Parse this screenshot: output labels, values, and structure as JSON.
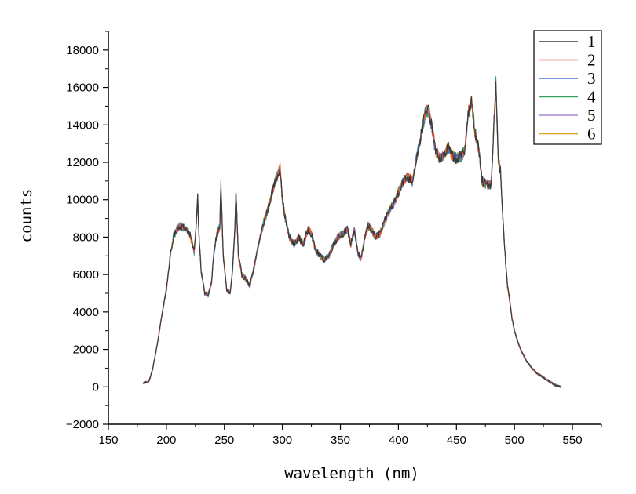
{
  "chart_data": {
    "type": "line",
    "title": "",
    "xlabel": "wavelength (nm)",
    "ylabel": "counts",
    "xlim": [
      150,
      575
    ],
    "ylim": [
      -2000,
      19000
    ],
    "x_ticks": [
      150,
      200,
      250,
      300,
      350,
      400,
      450,
      500,
      550
    ],
    "y_ticks": [
      -2000,
      0,
      2000,
      4000,
      6000,
      8000,
      10000,
      12000,
      14000,
      16000,
      18000
    ],
    "x_ticks_labels": [
      "150",
      "200",
      "250",
      "300",
      "350",
      "400",
      "450",
      "500",
      "550"
    ],
    "y_ticks_labels": [
      "−2000",
      "0",
      "2000",
      "4000",
      "6000",
      "8000",
      "10000",
      "12000",
      "14000",
      "16000",
      "18000"
    ],
    "grid": false,
    "legend_position": "top-right",
    "series": [
      {
        "name": "1",
        "color": "#3a3a3a"
      },
      {
        "name": "2",
        "color": "#e8583c"
      },
      {
        "name": "3",
        "color": "#4a78d0"
      },
      {
        "name": "4",
        "color": "#39a05a"
      },
      {
        "name": "5",
        "color": "#a58ad6"
      },
      {
        "name": "6",
        "color": "#d9a521"
      }
    ],
    "x": [
      180,
      185,
      188,
      192,
      196,
      200,
      203,
      206,
      209,
      212,
      215,
      218,
      221,
      224,
      226,
      227,
      228,
      230,
      233,
      236,
      239,
      241,
      243,
      246,
      247,
      249,
      252,
      255,
      257,
      259,
      260,
      262,
      265,
      268,
      272,
      276,
      280,
      284,
      288,
      292,
      296,
      298,
      300,
      303,
      306,
      310,
      314,
      318,
      322,
      325,
      328,
      332,
      336,
      340,
      344,
      348,
      352,
      356,
      359,
      362,
      365,
      368,
      371,
      374,
      377,
      380,
      384,
      388,
      392,
      396,
      400,
      404,
      408,
      412,
      416,
      420,
      423,
      426,
      429,
      432,
      436,
      440,
      443,
      446,
      450,
      454,
      457,
      460,
      463,
      466,
      469,
      472,
      476,
      480,
      482,
      484,
      486,
      488,
      490,
      492,
      494,
      496,
      498,
      500,
      503,
      506,
      510,
      515,
      520,
      525,
      530,
      535,
      540
    ],
    "values": [
      200,
      300,
      900,
      2200,
      3800,
      5200,
      6800,
      8000,
      8400,
      8600,
      8500,
      8400,
      8000,
      7200,
      9000,
      10200,
      8200,
      6200,
      5000,
      4900,
      5600,
      7200,
      8000,
      8600,
      10800,
      7000,
      5200,
      5000,
      6200,
      8400,
      10400,
      7000,
      6000,
      5800,
      5400,
      6500,
      7800,
      8800,
      9600,
      10600,
      11400,
      11700,
      10000,
      8800,
      8000,
      7600,
      8000,
      7600,
      8400,
      8200,
      7400,
      7000,
      6800,
      7000,
      7600,
      8000,
      8200,
      8400,
      7600,
      8400,
      7200,
      6800,
      8000,
      8600,
      8400,
      8000,
      8200,
      8800,
      9400,
      9800,
      10400,
      11000,
      11200,
      11000,
      12400,
      13600,
      14600,
      14800,
      13800,
      12600,
      12200,
      12400,
      12800,
      12400,
      12200,
      12300,
      12600,
      14600,
      15200,
      13600,
      12800,
      11000,
      10800,
      10800,
      13600,
      16200,
      12200,
      11600,
      9000,
      7000,
      5400,
      4600,
      3600,
      3000,
      2400,
      1900,
      1400,
      1000,
      700,
      500,
      300,
      100,
      0
    ]
  },
  "legend": {
    "items": [
      "1",
      "2",
      "3",
      "4",
      "5",
      "6"
    ]
  }
}
